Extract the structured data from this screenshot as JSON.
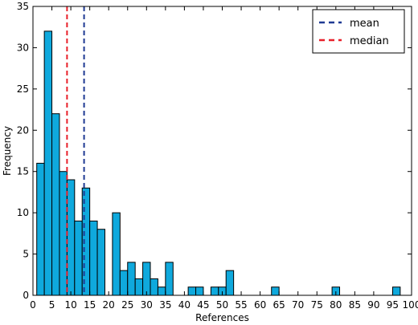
{
  "chart_data": {
    "type": "bar",
    "title": "",
    "xlabel": "References",
    "ylabel": "Frequency",
    "xlim": [
      0,
      100
    ],
    "ylim": [
      0,
      35
    ],
    "bin_width": 2,
    "xticks": [
      0,
      5,
      10,
      15,
      20,
      25,
      30,
      35,
      40,
      45,
      50,
      55,
      60,
      65,
      70,
      75,
      80,
      85,
      90,
      95,
      100
    ],
    "yticks": [
      0,
      5,
      10,
      15,
      20,
      25,
      30,
      35
    ],
    "bins": [
      {
        "start": 1,
        "value": 16
      },
      {
        "start": 3,
        "value": 32
      },
      {
        "start": 5,
        "value": 22
      },
      {
        "start": 7,
        "value": 15
      },
      {
        "start": 9,
        "value": 14
      },
      {
        "start": 11,
        "value": 9
      },
      {
        "start": 13,
        "value": 13
      },
      {
        "start": 15,
        "value": 9
      },
      {
        "start": 17,
        "value": 8
      },
      {
        "start": 19,
        "value": 0
      },
      {
        "start": 21,
        "value": 10
      },
      {
        "start": 23,
        "value": 3
      },
      {
        "start": 25,
        "value": 4
      },
      {
        "start": 27,
        "value": 2
      },
      {
        "start": 29,
        "value": 4
      },
      {
        "start": 31,
        "value": 2
      },
      {
        "start": 33,
        "value": 1
      },
      {
        "start": 35,
        "value": 4
      },
      {
        "start": 41,
        "value": 1
      },
      {
        "start": 43,
        "value": 1
      },
      {
        "start": 47,
        "value": 1
      },
      {
        "start": 49,
        "value": 1
      },
      {
        "start": 51,
        "value": 3
      },
      {
        "start": 63,
        "value": 1
      },
      {
        "start": 79,
        "value": 1
      },
      {
        "start": 95,
        "value": 1
      }
    ],
    "bar_color": "#0fa9dd",
    "bar_edge_color": "#000000",
    "lines": [
      {
        "name": "mean",
        "x": 13.5,
        "color": "#1f3a93",
        "style": "dashed"
      },
      {
        "name": "median",
        "x": 9,
        "color": "#e8202a",
        "style": "dashed"
      }
    ],
    "legend_position": "top-right",
    "grid": false
  }
}
